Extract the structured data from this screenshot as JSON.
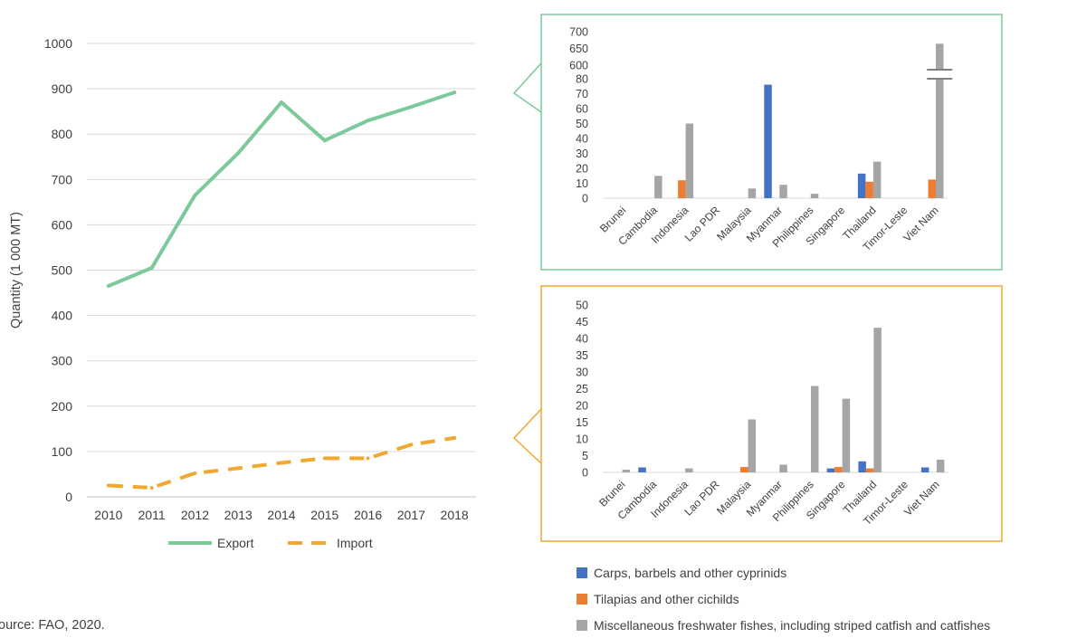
{
  "source": "ource: FAO, 2020.",
  "legend_species": [
    {
      "name": "Carps, barbels and other cyprinids",
      "color": "#4472C4"
    },
    {
      "name": "Tilapias and other cichilds",
      "color": "#ED7D31"
    },
    {
      "name": "Miscellaneous freshwater fishes, including striped catfish and catfishes",
      "color": "#A5A5A5"
    }
  ],
  "chart_data": [
    {
      "type": "line",
      "ylabel": "Quantity (1 000 MT)",
      "xlabel": "",
      "ylim": [
        0,
        1000
      ],
      "yticks": [
        "0",
        "100",
        "200",
        "300",
        "400",
        "500",
        "600",
        "700",
        "800",
        "900",
        "1000"
      ],
      "categories": [
        "2010",
        "2011",
        "2012",
        "2013",
        "2014",
        "2015",
        "2016",
        "2017",
        "2018"
      ],
      "grid": true,
      "legend": "bottom",
      "series": [
        {
          "name": "Export",
          "color": "#7CC99A",
          "dash": "solid",
          "values": [
            465,
            505,
            665,
            758,
            870,
            786,
            830,
            860,
            892
          ]
        },
        {
          "name": "Import",
          "color": "#F0A830",
          "dash": "dashed",
          "values": [
            25,
            20,
            52,
            63,
            75,
            85,
            85,
            115,
            130
          ]
        }
      ]
    },
    {
      "type": "bar",
      "panel": "export-by-country",
      "frame_color": "#7CC99A",
      "axis_break": {
        "lower_max": 80,
        "upper_min": 600,
        "upper_max": 700
      },
      "yticks": [
        "0",
        "10",
        "20",
        "30",
        "40",
        "50",
        "60",
        "70",
        "80",
        "600",
        "650",
        "700"
      ],
      "categories": [
        "Brunei",
        "Cambodia",
        "Indonesia",
        "Lao PDR",
        "Malaysia",
        "Myanmar",
        "Philippines",
        "Singapore",
        "Thailand",
        "Timor-Leste",
        "Viet Nam"
      ],
      "series": [
        {
          "name": "Carps, barbels and other cyprinids",
          "color": "#4472C4",
          "values": [
            0,
            0,
            0,
            0,
            0,
            76,
            0,
            0,
            16.5,
            0,
            0
          ]
        },
        {
          "name": "Tilapias and other cichilds",
          "color": "#ED7D31",
          "values": [
            0,
            0,
            12,
            0,
            0,
            0,
            0,
            0,
            11,
            0,
            12.5
          ]
        },
        {
          "name": "Miscellaneous freshwater fishes, including striped catfish and catfishes",
          "color": "#A5A5A5",
          "values": [
            0,
            15,
            50,
            0,
            6.5,
            9,
            3,
            0,
            24.5,
            0,
            664
          ]
        }
      ]
    },
    {
      "type": "bar",
      "panel": "import-by-country",
      "frame_color": "#F0A830",
      "ylim": [
        0,
        50
      ],
      "yticks": [
        "0",
        "5",
        "10",
        "15",
        "20",
        "25",
        "30",
        "35",
        "40",
        "45",
        "50"
      ],
      "categories": [
        "Brunei",
        "Cambodia",
        "Indonesia",
        "Lao PDR",
        "Malaysia",
        "Myanmar",
        "Philippines",
        "Singapore",
        "Thailand",
        "Timor-Leste",
        "Viet Nam"
      ],
      "series": [
        {
          "name": "Carps, barbels and other cyprinids",
          "color": "#4472C4",
          "values": [
            0,
            1.5,
            0,
            0,
            0,
            0,
            0,
            1.2,
            3.3,
            0,
            1.5
          ]
        },
        {
          "name": "Tilapias and other cichilds",
          "color": "#ED7D31",
          "values": [
            0,
            0,
            0,
            0,
            1.6,
            0,
            0,
            1.6,
            1.2,
            0,
            0
          ]
        },
        {
          "name": "Miscellaneous freshwater fishes, including striped catfish and catfishes",
          "color": "#A5A5A5",
          "values": [
            0.8,
            0,
            1.2,
            0,
            15.8,
            2.3,
            25.8,
            22,
            43.2,
            0,
            3.8
          ]
        }
      ]
    }
  ]
}
